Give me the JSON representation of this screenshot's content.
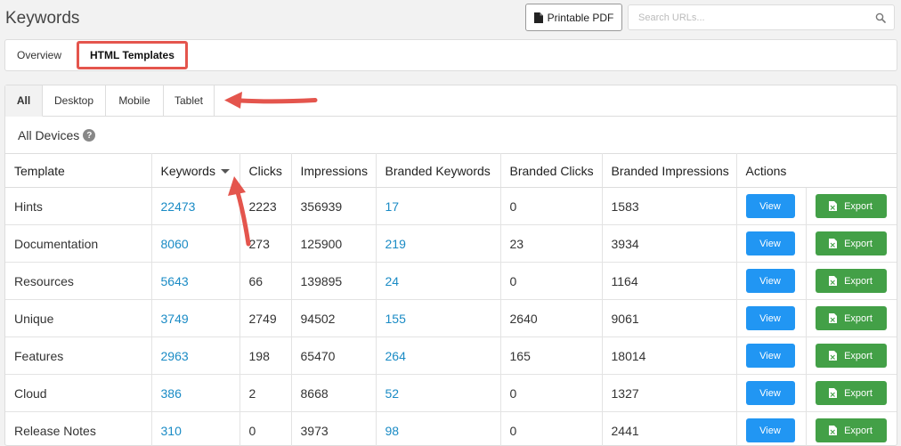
{
  "header": {
    "title": "Keywords",
    "pdf_button": "Printable PDF",
    "search_placeholder": "Search URLs..."
  },
  "top_tabs": [
    {
      "label": "Overview",
      "active": false
    },
    {
      "label": "HTML Templates",
      "active": true
    }
  ],
  "device_tabs": [
    {
      "label": "All",
      "active": true
    },
    {
      "label": "Desktop",
      "active": false
    },
    {
      "label": "Mobile",
      "active": false
    },
    {
      "label": "Tablet",
      "active": false
    }
  ],
  "panel": {
    "heading": "All Devices",
    "help_icon": "?"
  },
  "table": {
    "columns": [
      "Template",
      "Keywords",
      "Clicks",
      "Impressions",
      "Branded Keywords",
      "Branded Clicks",
      "Branded Impressions",
      "Actions"
    ],
    "view_label": "View",
    "export_label": "Export",
    "rows": [
      {
        "template": "Hints",
        "keywords": "22473",
        "clicks": "2223",
        "impressions": "356939",
        "branded_keywords": "17",
        "branded_clicks": "0",
        "branded_impressions": "1583"
      },
      {
        "template": "Documentation",
        "keywords": "8060",
        "clicks": "273",
        "impressions": "125900",
        "branded_keywords": "219",
        "branded_clicks": "23",
        "branded_impressions": "3934"
      },
      {
        "template": "Resources",
        "keywords": "5643",
        "clicks": "66",
        "impressions": "139895",
        "branded_keywords": "24",
        "branded_clicks": "0",
        "branded_impressions": "1164"
      },
      {
        "template": "Unique",
        "keywords": "3749",
        "clicks": "2749",
        "impressions": "94502",
        "branded_keywords": "155",
        "branded_clicks": "2640",
        "branded_impressions": "9061"
      },
      {
        "template": "Features",
        "keywords": "2963",
        "clicks": "198",
        "impressions": "65470",
        "branded_keywords": "264",
        "branded_clicks": "165",
        "branded_impressions": "18014"
      },
      {
        "template": "Cloud",
        "keywords": "386",
        "clicks": "2",
        "impressions": "8668",
        "branded_keywords": "52",
        "branded_clicks": "0",
        "branded_impressions": "1327"
      },
      {
        "template": "Release Notes",
        "keywords": "310",
        "clicks": "0",
        "impressions": "3973",
        "branded_keywords": "98",
        "branded_clicks": "0",
        "branded_impressions": "2441"
      }
    ]
  },
  "colors": {
    "link": "#1a8bc5",
    "view_button": "#2196f3",
    "export_button": "#43a047",
    "highlight": "#e4554d"
  },
  "icons": {
    "pdf": "file-pdf-icon",
    "search": "search-icon",
    "help": "question-circle-icon",
    "export": "file-excel-icon",
    "sort": "caret-down-icon"
  }
}
